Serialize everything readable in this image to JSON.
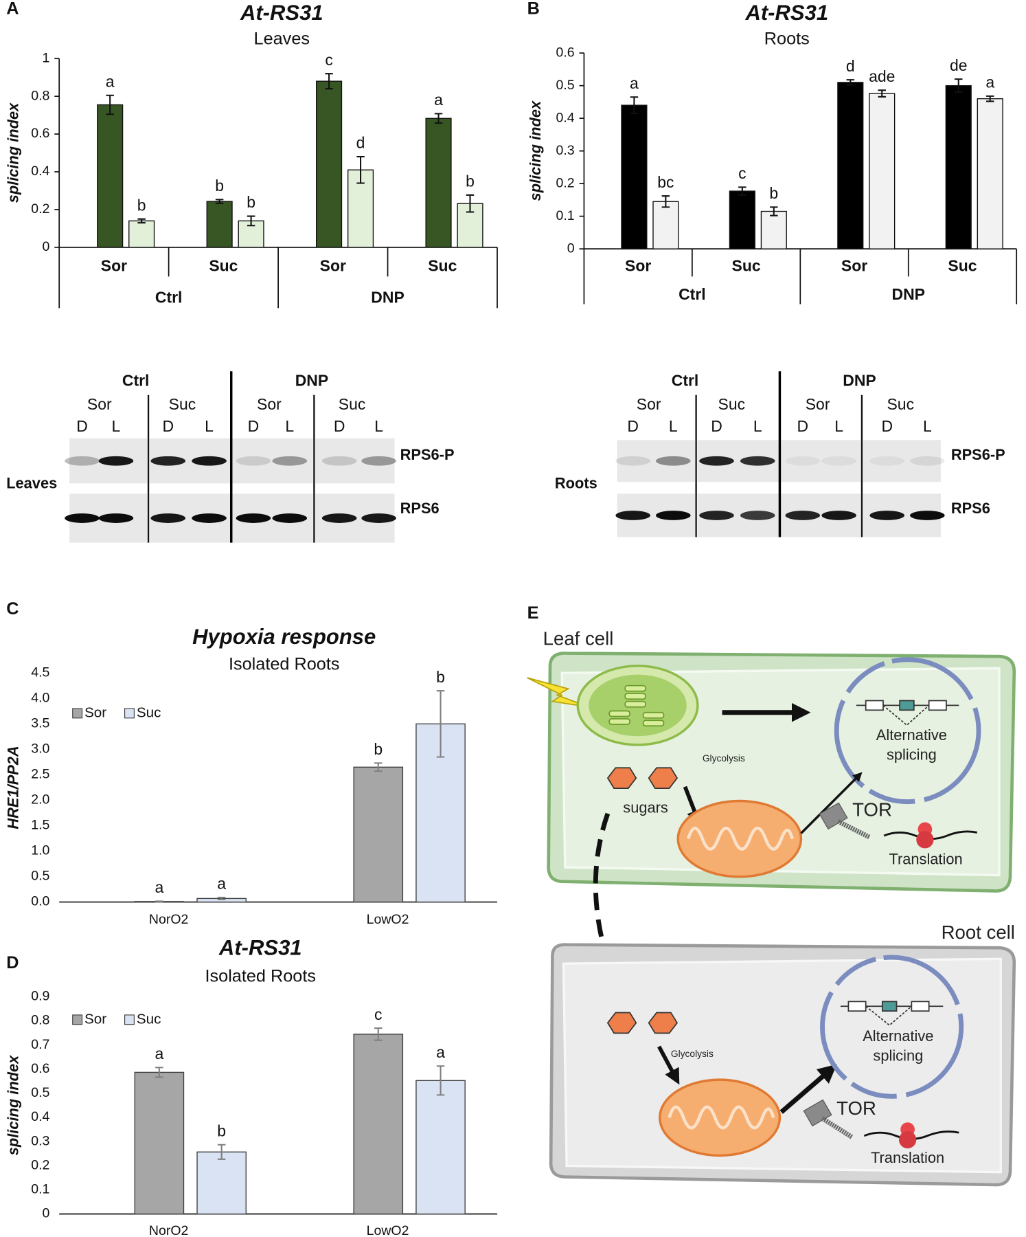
{
  "chart_data": [
    {
      "type": "bar",
      "panel": "A",
      "title": "At-RS31",
      "subtitle": "Leaves",
      "y_label": "splicing index",
      "categories": [
        "Sor",
        "Suc",
        "Sor",
        "Suc"
      ],
      "groups": [
        "Ctrl",
        "DNP"
      ],
      "series": [
        {
          "color": "#375623",
          "values": [
            0.755,
            0.243,
            0.88,
            0.683
          ],
          "errors": [
            0.05,
            0.01,
            0.04,
            0.025
          ],
          "letters": [
            "a",
            "b",
            "c",
            "a"
          ]
        },
        {
          "color": "#e2efd9",
          "values": [
            0.14,
            0.14,
            0.41,
            0.232
          ],
          "errors": [
            0.01,
            0.025,
            0.07,
            0.045
          ],
          "letters": [
            "b",
            "b",
            "d",
            "b"
          ]
        }
      ],
      "ylim": [
        0,
        1
      ],
      "yticks": [
        0,
        0.2,
        0.4,
        0.6,
        0.8,
        1
      ]
    },
    {
      "type": "bar",
      "panel": "B",
      "title": "At-RS31",
      "subtitle": "Roots",
      "y_label": "splicing index",
      "categories": [
        "Sor",
        "Suc",
        "Sor",
        "Suc"
      ],
      "groups": [
        "Ctrl",
        "DNP"
      ],
      "series": [
        {
          "color": "#000000",
          "values": [
            0.44,
            0.177,
            0.51,
            0.5
          ],
          "errors": [
            0.025,
            0.012,
            0.008,
            0.02
          ],
          "letters": [
            "a",
            "c",
            "d",
            "de"
          ]
        },
        {
          "color": "#f2f2f2",
          "values": [
            0.145,
            0.115,
            0.476,
            0.46
          ],
          "errors": [
            0.017,
            0.013,
            0.01,
            0.008
          ],
          "letters": [
            "bc",
            "b",
            "ade",
            "a"
          ]
        }
      ],
      "ylim": [
        0,
        0.6
      ],
      "yticks": [
        0,
        0.1,
        0.2,
        0.3,
        0.4,
        0.5,
        0.6
      ]
    },
    {
      "type": "bar",
      "panel": "C",
      "title": "Hypoxia response",
      "subtitle": "Isolated Roots",
      "y_label": "HRE1/PP2A",
      "categories": [
        "NorO2",
        "LowO2"
      ],
      "series": [
        {
          "name": "Sor",
          "color": "#a6a6a6",
          "values": [
            0.01,
            2.65
          ],
          "errors": [
            0.005,
            0.08
          ],
          "letters": [
            "a",
            "b"
          ]
        },
        {
          "name": "Suc",
          "color": "#dae3f3",
          "values": [
            0.07,
            3.5
          ],
          "errors": [
            0.02,
            0.65
          ],
          "letters": [
            "a",
            "b"
          ]
        }
      ],
      "ylim": [
        0,
        4.5
      ],
      "legend": "upper left",
      "yticks": [
        {
          "value": 0,
          "label": "0.0"
        },
        0.5,
        {
          "value": 1,
          "label": "1.0"
        },
        1.5,
        {
          "value": 2,
          "label": "2.0"
        },
        2.5,
        {
          "value": 3,
          "label": "3.0"
        },
        3.5,
        {
          "value": 4,
          "label": "4.0"
        },
        4.5
      ]
    },
    {
      "type": "bar",
      "panel": "D",
      "title": "At-RS31",
      "subtitle": "Isolated Roots",
      "y_label": "splicing index",
      "categories": [
        "NorO2",
        "LowO2"
      ],
      "series": [
        {
          "name": "Sor",
          "color": "#a6a6a6",
          "values": [
            0.587,
            0.745
          ],
          "errors": [
            0.02,
            0.025
          ],
          "letters": [
            "a",
            "c"
          ]
        },
        {
          "name": "Suc",
          "color": "#dae3f3",
          "values": [
            0.257,
            0.553
          ],
          "errors": [
            0.03,
            0.06
          ],
          "letters": [
            "b",
            "a"
          ]
        }
      ],
      "ylim": [
        0,
        0.9
      ],
      "legend": "upper left",
      "yticks": [
        0,
        0.1,
        0.2,
        0.3,
        0.4,
        0.5,
        0.6,
        0.7,
        0.8,
        0.9
      ]
    }
  ],
  "blots": [
    {
      "tissue": "Leaves",
      "groups": [
        "Ctrl",
        "DNP"
      ],
      "conditions": [
        "Sor",
        "Suc",
        "Sor",
        "Suc"
      ],
      "lanes": [
        "D",
        "L",
        "D",
        "L",
        "D",
        "L",
        "D",
        "L"
      ],
      "proteins": [
        "RPS6-P",
        "RPS6"
      ]
    },
    {
      "tissue": "Roots",
      "groups": [
        "Ctrl",
        "DNP"
      ],
      "conditions": [
        "Sor",
        "Suc",
        "Sor",
        "Suc"
      ],
      "lanes": [
        "D",
        "L",
        "D",
        "L",
        "D",
        "L",
        "D",
        "L"
      ],
      "proteins": [
        "RPS6-P",
        "RPS6"
      ]
    }
  ],
  "diagram": {
    "panel": "E",
    "leaf": {
      "label": "Leaf cell",
      "glycolysis": "Glycolysis",
      "sugars": "sugars",
      "splicing": [
        "Alternative",
        "splicing"
      ],
      "tor": "TOR",
      "translation": "Translation"
    },
    "root": {
      "label": "Root cell",
      "glycolysis": "Glycolysis",
      "splicing": [
        "Alternative",
        "splicing"
      ],
      "tor": "TOR",
      "translation": "Translation"
    }
  }
}
